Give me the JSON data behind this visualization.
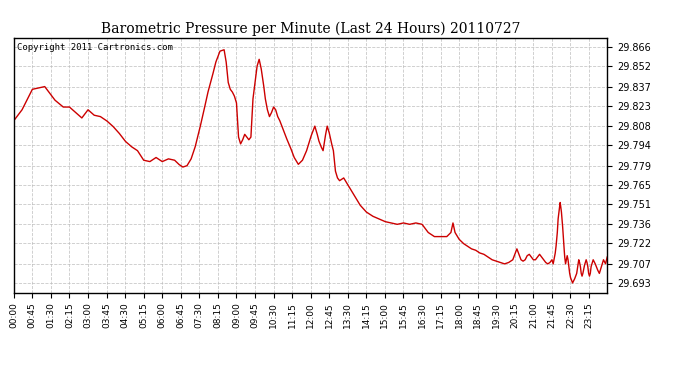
{
  "title": "Barometric Pressure per Minute (Last 24 Hours) 20110727",
  "copyright": "Copyright 2011 Cartronics.com",
  "line_color": "#cc0000",
  "bg_color": "#ffffff",
  "grid_color": "#bbbbbb",
  "yticks": [
    29.693,
    29.707,
    29.722,
    29.736,
    29.751,
    29.765,
    29.779,
    29.794,
    29.808,
    29.823,
    29.837,
    29.852,
    29.866
  ],
  "xtick_labels": [
    "00:00",
    "00:45",
    "01:30",
    "02:15",
    "03:00",
    "03:45",
    "04:30",
    "05:15",
    "06:00",
    "06:45",
    "07:30",
    "08:15",
    "09:00",
    "09:45",
    "10:30",
    "11:15",
    "12:00",
    "12:45",
    "13:30",
    "14:15",
    "15:00",
    "15:45",
    "16:30",
    "17:15",
    "18:00",
    "18:45",
    "19:30",
    "20:15",
    "21:00",
    "21:45",
    "22:30",
    "23:15"
  ],
  "ymin": 29.686,
  "ymax": 29.873,
  "waypoints": [
    [
      0,
      29.812
    ],
    [
      20,
      29.82
    ],
    [
      45,
      29.835
    ],
    [
      75,
      29.837
    ],
    [
      100,
      29.827
    ],
    [
      120,
      29.822
    ],
    [
      135,
      29.822
    ],
    [
      150,
      29.818
    ],
    [
      165,
      29.814
    ],
    [
      180,
      29.82
    ],
    [
      195,
      29.816
    ],
    [
      210,
      29.815
    ],
    [
      225,
      29.812
    ],
    [
      240,
      29.808
    ],
    [
      255,
      29.803
    ],
    [
      270,
      29.797
    ],
    [
      285,
      29.793
    ],
    [
      300,
      29.79
    ],
    [
      315,
      29.783
    ],
    [
      330,
      29.782
    ],
    [
      345,
      29.785
    ],
    [
      360,
      29.782
    ],
    [
      375,
      29.784
    ],
    [
      390,
      29.783
    ],
    [
      400,
      29.78
    ],
    [
      410,
      29.778
    ],
    [
      420,
      29.779
    ],
    [
      430,
      29.784
    ],
    [
      440,
      29.793
    ],
    [
      450,
      29.805
    ],
    [
      460,
      29.818
    ],
    [
      470,
      29.832
    ],
    [
      480,
      29.843
    ],
    [
      490,
      29.855
    ],
    [
      500,
      29.863
    ],
    [
      510,
      29.864
    ],
    [
      515,
      29.855
    ],
    [
      520,
      29.84
    ],
    [
      525,
      29.835
    ],
    [
      530,
      29.833
    ],
    [
      535,
      29.83
    ],
    [
      540,
      29.825
    ],
    [
      545,
      29.8
    ],
    [
      550,
      29.795
    ],
    [
      555,
      29.798
    ],
    [
      560,
      29.802
    ],
    [
      565,
      29.8
    ],
    [
      570,
      29.798
    ],
    [
      575,
      29.8
    ],
    [
      580,
      29.828
    ],
    [
      585,
      29.84
    ],
    [
      590,
      29.852
    ],
    [
      595,
      29.857
    ],
    [
      600,
      29.85
    ],
    [
      605,
      29.84
    ],
    [
      610,
      29.828
    ],
    [
      615,
      29.82
    ],
    [
      620,
      29.815
    ],
    [
      625,
      29.818
    ],
    [
      630,
      29.822
    ],
    [
      635,
      29.82
    ],
    [
      640,
      29.815
    ],
    [
      645,
      29.812
    ],
    [
      650,
      29.808
    ],
    [
      660,
      29.8
    ],
    [
      670,
      29.793
    ],
    [
      680,
      29.785
    ],
    [
      690,
      29.78
    ],
    [
      700,
      29.783
    ],
    [
      710,
      29.79
    ],
    [
      720,
      29.8
    ],
    [
      730,
      29.808
    ],
    [
      735,
      29.803
    ],
    [
      740,
      29.797
    ],
    [
      745,
      29.793
    ],
    [
      750,
      29.79
    ],
    [
      755,
      29.8
    ],
    [
      760,
      29.808
    ],
    [
      765,
      29.803
    ],
    [
      770,
      29.796
    ],
    [
      775,
      29.79
    ],
    [
      780,
      29.775
    ],
    [
      785,
      29.77
    ],
    [
      790,
      29.768
    ],
    [
      795,
      29.769
    ],
    [
      800,
      29.77
    ],
    [
      810,
      29.765
    ],
    [
      820,
      29.76
    ],
    [
      830,
      29.755
    ],
    [
      840,
      29.75
    ],
    [
      855,
      29.745
    ],
    [
      870,
      29.742
    ],
    [
      885,
      29.74
    ],
    [
      900,
      29.738
    ],
    [
      915,
      29.737
    ],
    [
      930,
      29.736
    ],
    [
      945,
      29.737
    ],
    [
      960,
      29.736
    ],
    [
      975,
      29.737
    ],
    [
      990,
      29.736
    ],
    [
      1005,
      29.73
    ],
    [
      1020,
      29.727
    ],
    [
      1035,
      29.727
    ],
    [
      1050,
      29.727
    ],
    [
      1060,
      29.73
    ],
    [
      1065,
      29.737
    ],
    [
      1070,
      29.73
    ],
    [
      1080,
      29.725
    ],
    [
      1090,
      29.722
    ],
    [
      1100,
      29.72
    ],
    [
      1110,
      29.718
    ],
    [
      1120,
      29.717
    ],
    [
      1130,
      29.715
    ],
    [
      1140,
      29.714
    ],
    [
      1150,
      29.712
    ],
    [
      1160,
      29.71
    ],
    [
      1170,
      29.709
    ],
    [
      1180,
      29.708
    ],
    [
      1190,
      29.707
    ],
    [
      1200,
      29.708
    ],
    [
      1210,
      29.71
    ],
    [
      1215,
      29.714
    ],
    [
      1220,
      29.718
    ],
    [
      1225,
      29.714
    ],
    [
      1230,
      29.71
    ],
    [
      1235,
      29.709
    ],
    [
      1240,
      29.71
    ],
    [
      1245,
      29.713
    ],
    [
      1250,
      29.714
    ],
    [
      1255,
      29.712
    ],
    [
      1260,
      29.71
    ],
    [
      1265,
      29.71
    ],
    [
      1270,
      29.712
    ],
    [
      1275,
      29.714
    ],
    [
      1280,
      29.712
    ],
    [
      1285,
      29.71
    ],
    [
      1290,
      29.708
    ],
    [
      1295,
      29.707
    ],
    [
      1300,
      29.708
    ],
    [
      1305,
      29.71
    ],
    [
      1308,
      29.707
    ],
    [
      1310,
      29.71
    ],
    [
      1313,
      29.715
    ],
    [
      1315,
      29.72
    ],
    [
      1318,
      29.73
    ],
    [
      1320,
      29.74
    ],
    [
      1323,
      29.748
    ],
    [
      1325,
      29.752
    ],
    [
      1328,
      29.745
    ],
    [
      1330,
      29.738
    ],
    [
      1332,
      29.73
    ],
    [
      1334,
      29.72
    ],
    [
      1336,
      29.712
    ],
    [
      1338,
      29.707
    ],
    [
      1340,
      29.71
    ],
    [
      1342,
      29.713
    ],
    [
      1344,
      29.71
    ],
    [
      1346,
      29.705
    ],
    [
      1348,
      29.7
    ],
    [
      1350,
      29.697
    ],
    [
      1355,
      29.693
    ],
    [
      1360,
      29.696
    ],
    [
      1365,
      29.7
    ],
    [
      1368,
      29.706
    ],
    [
      1370,
      29.71
    ],
    [
      1372,
      29.708
    ],
    [
      1374,
      29.705
    ],
    [
      1376,
      29.7
    ],
    [
      1378,
      29.698
    ],
    [
      1380,
      29.7
    ],
    [
      1382,
      29.703
    ],
    [
      1384,
      29.706
    ],
    [
      1386,
      29.708
    ],
    [
      1388,
      29.71
    ],
    [
      1390,
      29.708
    ],
    [
      1392,
      29.705
    ],
    [
      1394,
      29.7
    ],
    [
      1396,
      29.698
    ],
    [
      1398,
      29.7
    ],
    [
      1400,
      29.705
    ],
    [
      1405,
      29.71
    ],
    [
      1410,
      29.707
    ],
    [
      1415,
      29.703
    ],
    [
      1420,
      29.7
    ],
    [
      1425,
      29.705
    ],
    [
      1430,
      29.71
    ],
    [
      1435,
      29.707
    ],
    [
      1439,
      29.712
    ]
  ]
}
